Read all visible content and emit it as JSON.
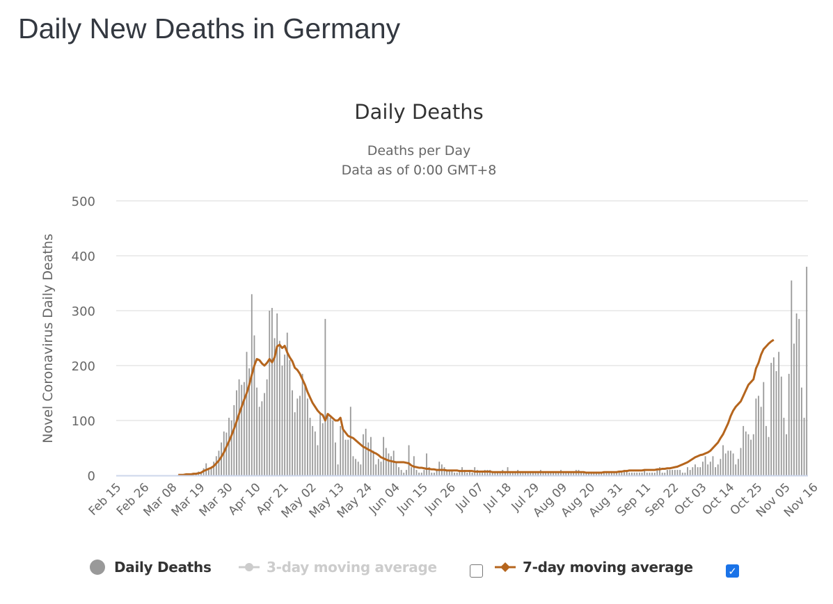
{
  "page": {
    "title": "Daily New Deaths in Germany"
  },
  "legend": {
    "items": [
      {
        "label": "Daily Deaths",
        "color": "#999999",
        "active": true
      },
      {
        "label": "3-day moving average",
        "color": "#cccccc",
        "active": false
      },
      {
        "label": "7-day moving average",
        "color": "#b5651d",
        "active": true
      }
    ],
    "checkbox_3day": false,
    "checkbox_7day": true
  },
  "chart_data": {
    "type": "bar",
    "title": "Daily Deaths",
    "subtitle_lines": [
      "Deaths per Day",
      "Data as of 0:00 GMT+8"
    ],
    "xlabel": "",
    "ylabel": "Novel Coronavirus Daily Deaths",
    "ylim": [
      0,
      500
    ],
    "yticks": [
      0,
      100,
      200,
      300,
      400,
      500
    ],
    "grid": true,
    "legend_position": "bottom",
    "x_start": "Feb 15",
    "x_end": "Nov 23",
    "xtick_labels": [
      "Feb 15",
      "Feb 26",
      "Mar 08",
      "Mar 19",
      "Mar 30",
      "Apr 10",
      "Apr 21",
      "May 02",
      "May 13",
      "May 24",
      "Jun 04",
      "Jun 15",
      "Jun 26",
      "Jul 07",
      "Jul 18",
      "Jul 29",
      "Aug 09",
      "Aug 20",
      "Aug 31",
      "Sep 11",
      "Sep 22",
      "Oct 03",
      "Oct 14",
      "Oct 25",
      "Nov 05",
      "Nov 16"
    ],
    "xtick_interval_days": 11,
    "series": [
      {
        "name": "Daily Deaths",
        "type": "bar",
        "color": "#999999",
        "values": [
          0,
          0,
          0,
          0,
          0,
          0,
          0,
          0,
          0,
          0,
          0,
          0,
          0,
          0,
          0,
          0,
          0,
          0,
          0,
          0,
          0,
          0,
          0,
          0,
          1,
          0,
          1,
          0,
          2,
          3,
          4,
          2,
          7,
          5,
          13,
          22,
          10,
          15,
          25,
          35,
          45,
          60,
          80,
          78,
          105,
          100,
          128,
          155,
          175,
          165,
          170,
          225,
          195,
          330,
          255,
          160,
          125,
          135,
          150,
          175,
          300,
          305,
          250,
          295,
          245,
          200,
          220,
          260,
          210,
          155,
          115,
          140,
          145,
          185,
          165,
          140,
          105,
          90,
          80,
          55,
          115,
          95,
          285,
          110,
          105,
          100,
          60,
          20,
          90,
          85,
          65,
          65,
          125,
          35,
          30,
          25,
          20,
          75,
          85,
          60,
          70,
          45,
          20,
          30,
          25,
          70,
          50,
          40,
          35,
          45,
          25,
          15,
          10,
          5,
          10,
          55,
          15,
          35,
          10,
          5,
          5,
          10,
          40,
          15,
          5,
          5,
          10,
          25,
          20,
          15,
          10,
          10,
          10,
          5,
          5,
          10,
          15,
          10,
          5,
          10,
          5,
          15,
          10,
          5,
          5,
          10,
          10,
          10,
          5,
          5,
          5,
          5,
          10,
          5,
          15,
          5,
          5,
          5,
          10,
          5,
          5,
          5,
          5,
          5,
          5,
          5,
          5,
          10,
          5,
          5,
          5,
          5,
          5,
          5,
          5,
          10,
          5,
          5,
          5,
          5,
          5,
          10,
          10,
          5,
          5,
          5,
          5,
          5,
          5,
          5,
          5,
          5,
          5,
          5,
          5,
          5,
          5,
          5,
          5,
          5,
          10,
          10,
          5,
          5,
          5,
          5,
          5,
          5,
          10,
          5,
          5,
          5,
          5,
          10,
          15,
          5,
          5,
          10,
          10,
          10,
          10,
          10,
          10,
          5,
          5,
          15,
          10,
          15,
          20,
          15,
          15,
          25,
          35,
          20,
          25,
          35,
          15,
          20,
          30,
          55,
          40,
          45,
          45,
          40,
          20,
          30,
          50,
          90,
          80,
          75,
          65,
          75,
          140,
          145,
          125,
          170,
          90,
          70,
          205,
          215,
          190,
          225,
          180,
          105,
          75,
          185,
          355,
          240,
          295,
          285,
          160,
          105,
          380
        ]
      },
      {
        "name": "7-day moving average",
        "type": "line",
        "color": "#b5651d",
        "values": [
          null,
          null,
          null,
          null,
          null,
          null,
          null,
          null,
          null,
          null,
          null,
          null,
          null,
          null,
          null,
          null,
          null,
          null,
          null,
          null,
          null,
          null,
          null,
          null,
          1,
          1,
          1,
          2,
          2,
          2,
          3,
          3,
          4,
          5,
          8,
          10,
          12,
          14,
          17,
          22,
          27,
          34,
          42,
          52,
          62,
          73,
          85,
          98,
          112,
          125,
          138,
          150,
          165,
          183,
          200,
          212,
          210,
          204,
          200,
          205,
          212,
          206,
          215,
          235,
          238,
          232,
          236,
          224,
          215,
          208,
          196,
          192,
          185,
          175,
          165,
          152,
          142,
          132,
          125,
          118,
          113,
          110,
          100,
          112,
          108,
          104,
          100,
          100,
          105,
          84,
          78,
          72,
          70,
          68,
          64,
          60,
          56,
          52,
          50,
          47,
          45,
          42,
          40,
          37,
          33,
          31,
          29,
          27,
          26,
          25,
          24,
          24,
          24,
          24,
          23,
          22,
          18,
          16,
          15,
          14,
          14,
          13,
          12,
          12,
          11,
          11,
          10,
          10,
          10,
          10,
          9,
          9,
          9,
          9,
          9,
          8,
          8,
          8,
          8,
          8,
          8,
          7,
          7,
          7,
          7,
          7,
          7,
          7,
          6,
          6,
          6,
          6,
          6,
          6,
          6,
          6,
          6,
          6,
          6,
          6,
          6,
          6,
          6,
          6,
          6,
          6,
          6,
          6,
          6,
          6,
          6,
          6,
          6,
          6,
          6,
          6,
          6,
          6,
          6,
          6,
          6,
          6,
          6,
          6,
          6,
          5,
          5,
          5,
          5,
          5,
          5,
          5,
          6,
          6,
          6,
          6,
          6,
          6,
          7,
          7,
          8,
          8,
          9,
          9,
          9,
          9,
          9,
          9,
          10,
          10,
          10,
          10,
          10,
          11,
          11,
          12,
          12,
          13,
          13,
          14,
          15,
          16,
          18,
          20,
          22,
          24,
          27,
          30,
          33,
          35,
          37,
          38,
          40,
          42,
          45,
          50,
          55,
          60,
          68,
          75,
          85,
          95,
          108,
          118,
          125,
          130,
          135,
          145,
          155,
          165,
          170,
          175,
          195,
          205,
          220,
          230,
          235,
          240,
          244,
          247
        ]
      },
      {
        "name": "3-day moving average",
        "type": "line",
        "color": "#cccccc",
        "visible": false,
        "values": []
      }
    ]
  }
}
